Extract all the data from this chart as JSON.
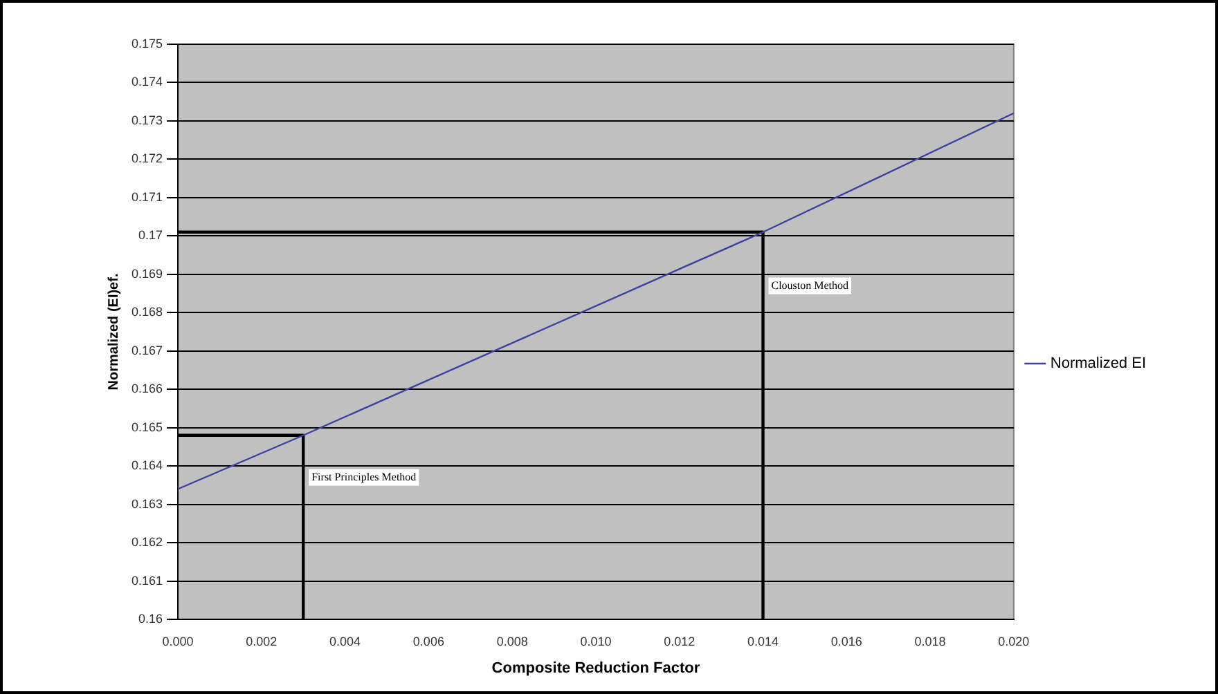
{
  "chart_data": {
    "type": "line",
    "xlabel": "Composite Reduction Factor",
    "ylabel": "Normalized (EI)ef.",
    "x": [
      0,
      0.003,
      0.014,
      0.02
    ],
    "series": [
      {
        "name": "Normalized EI",
        "color": "#4040a0",
        "values": [
          0.1634,
          0.1648,
          0.1701,
          0.1732
        ]
      },
      {
        "type": "line",
        "color": "#000000",
        "x": [
          0,
          0.003,
          0.003
        ],
        "values": [
          0.1648,
          0.1648,
          0.16
        ]
      },
      {
        "type": "line",
        "color": "#000000",
        "x": [
          0,
          0.014,
          0.014
        ],
        "values": [
          0.1701,
          0.1701,
          0.16
        ]
      }
    ],
    "annotations": [
      {
        "text": "First Principles Method",
        "x": 0.003,
        "y": 0.1637
      },
      {
        "text": "Clouston Method",
        "x": 0.014,
        "y": 0.1687
      }
    ],
    "xlim": [
      0,
      0.02
    ],
    "xticks": [
      {
        "value": 0,
        "label": "0.000"
      },
      {
        "value": 0.002,
        "label": "0.002"
      },
      {
        "value": 0.004,
        "label": "0.004"
      },
      {
        "value": 0.006,
        "label": "0.006"
      },
      {
        "value": 0.008,
        "label": "0.008"
      },
      {
        "value": 0.01,
        "label": "0.010"
      },
      {
        "value": 0.012,
        "label": "0.012"
      },
      {
        "value": 0.014,
        "label": "0.014"
      },
      {
        "value": 0.016,
        "label": "0.016"
      },
      {
        "value": 0.018,
        "label": "0.018"
      },
      {
        "value": 0.02,
        "label": "0.020"
      }
    ],
    "ylim": [
      0.16,
      0.175
    ],
    "yticks": [
      0.16,
      0.161,
      0.162,
      0.163,
      0.164,
      0.165,
      0.166,
      0.167,
      0.168,
      0.169,
      0.17,
      0.171,
      0.172,
      0.173,
      0.174,
      0.175
    ],
    "grid": "y",
    "legend": "right",
    "marker": "none",
    "line_style": "solid"
  }
}
